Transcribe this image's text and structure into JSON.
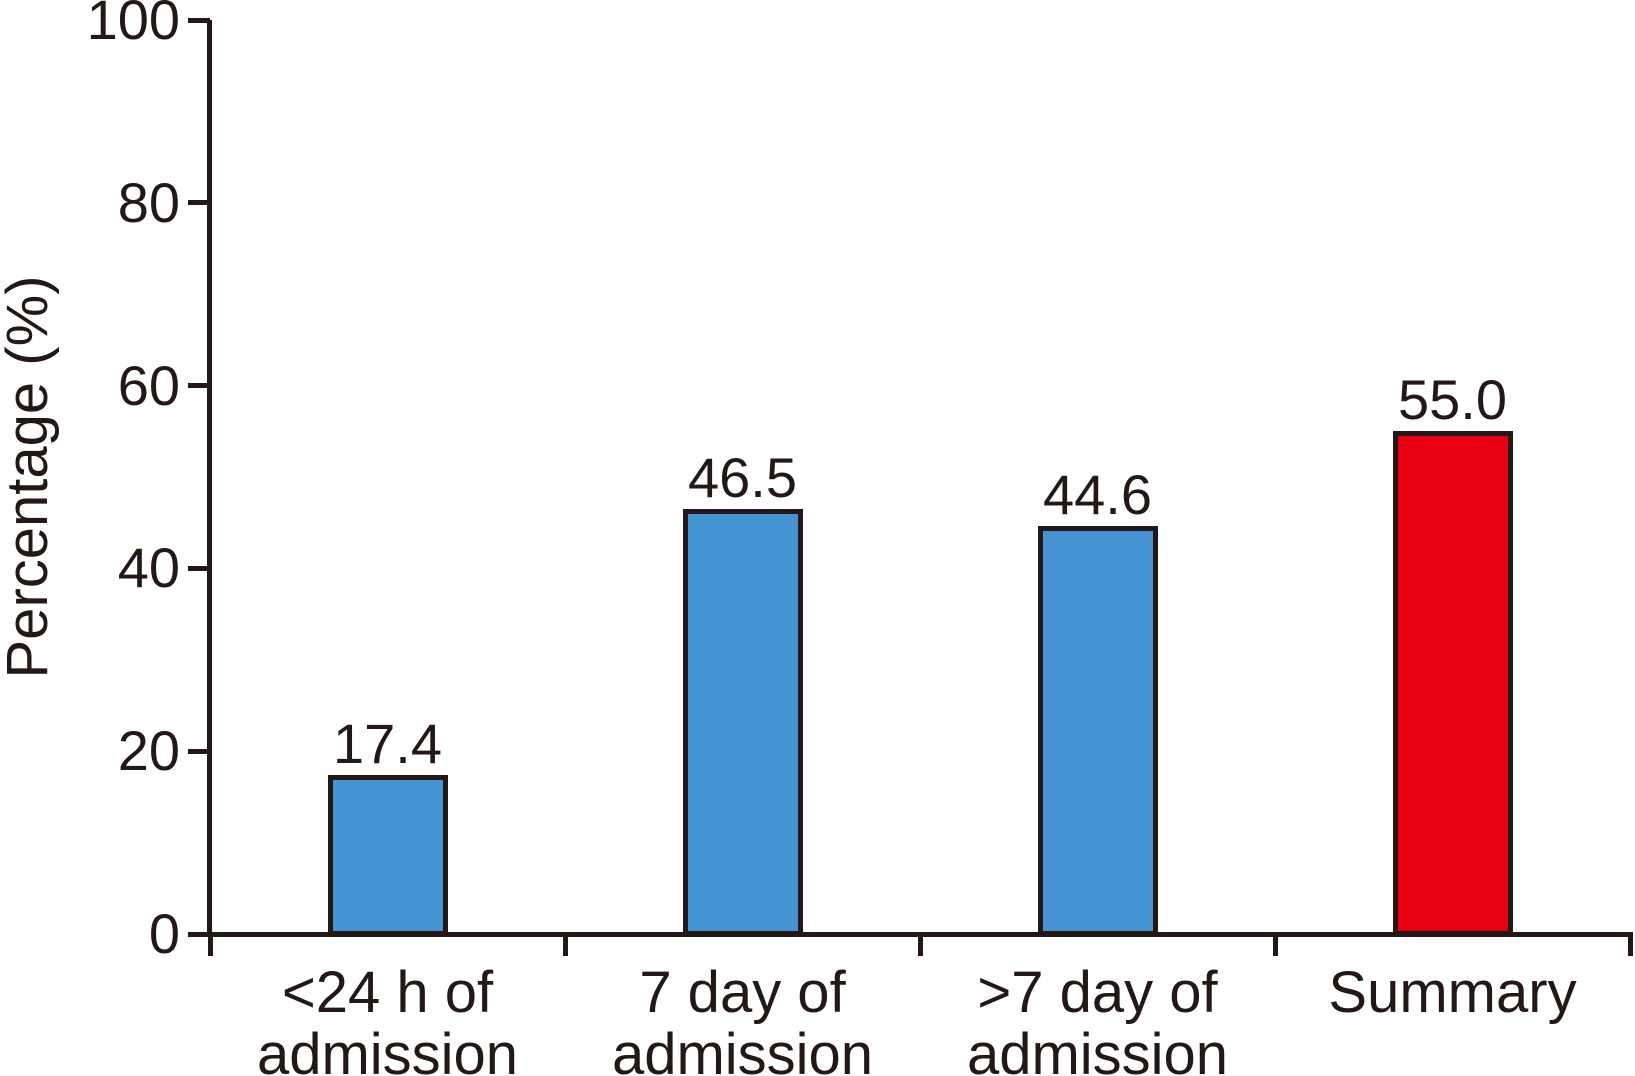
{
  "chart_data": {
    "type": "bar",
    "title": "",
    "xlabel": "",
    "ylabel": "Percentage (%)",
    "ylim": [
      0,
      100
    ],
    "yticks": [
      0,
      20,
      40,
      60,
      80,
      100
    ],
    "grid": false,
    "legend": "none",
    "categories": [
      "<24 h of admission",
      "7 day of admission",
      ">7 day of admission",
      "Summary"
    ],
    "category_lines": [
      [
        "<24 h of",
        "admission"
      ],
      [
        "7 day of",
        "admission"
      ],
      [
        ">7 day of",
        "admission"
      ],
      [
        "Summary"
      ]
    ],
    "values": [
      17.4,
      46.5,
      44.6,
      55.0
    ],
    "value_labels": [
      "17.4",
      "46.5",
      "44.6",
      "55.0"
    ],
    "bar_colors": [
      "#4594d1",
      "#4594d1",
      "#4594d1",
      "#e60012"
    ],
    "outline_color": "#231815",
    "axis_color": "#231815",
    "text_color": "#231815",
    "background_color": "#ffffff"
  }
}
